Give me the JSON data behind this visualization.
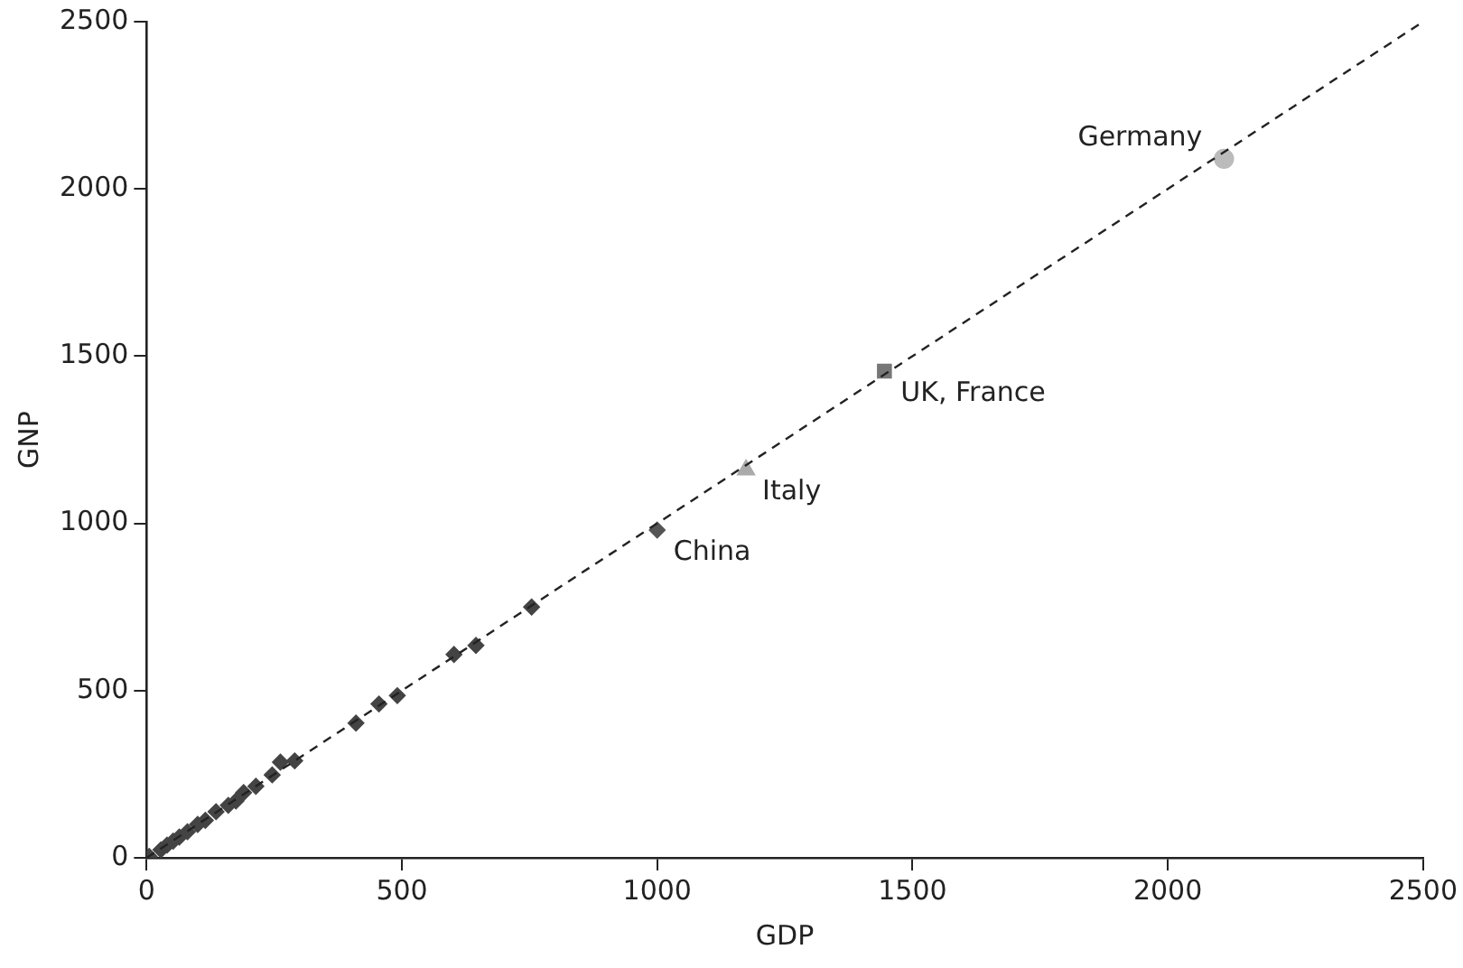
{
  "chart_data": {
    "type": "scatter",
    "xlabel": "GDP",
    "ylabel": "GNP",
    "xlim": [
      0,
      2500
    ],
    "ylim": [
      0,
      2500
    ],
    "xticks": [
      0,
      500,
      1000,
      1500,
      2000,
      2500
    ],
    "yticks": [
      0,
      500,
      1000,
      1500,
      2000,
      2500
    ],
    "grid": false,
    "legend": false,
    "series": [
      {
        "type": "line",
        "x": [
          0,
          2500
        ],
        "values": [
          0,
          2500
        ],
        "color": "#222222",
        "line_style": "dashed",
        "marker": "none"
      },
      {
        "color": "#444444",
        "marker": "diamond",
        "x": [
          5,
          28,
          40,
          52,
          64,
          80,
          100,
          115,
          136,
          160,
          175,
          190,
          214,
          246,
          262,
          290,
          410,
          455,
          491,
          602,
          645,
          754
        ],
        "values": [
          4,
          24,
          38,
          50,
          62,
          78,
          100,
          112,
          138,
          157,
          170,
          195,
          214,
          248,
          286,
          290,
          403,
          460,
          485,
          608,
          635,
          750
        ]
      },
      {
        "color": "#555555",
        "marker": "diamond",
        "x": [
          1000
        ],
        "values": [
          980
        ]
      },
      {
        "color": "#aaaaaa",
        "marker": "triangle",
        "x": [
          1174
        ],
        "values": [
          1160
        ]
      },
      {
        "color": "#777777",
        "marker": "square",
        "x": [
          1445
        ],
        "values": [
          1455
        ]
      },
      {
        "color": "#bbbbbb",
        "marker": "circle",
        "x": [
          2110
        ],
        "values": [
          2090
        ]
      }
    ],
    "annotations": [
      {
        "text": "China",
        "x": 1000,
        "y": 980
      },
      {
        "text": "Italy",
        "x": 1174,
        "y": 1160
      },
      {
        "text": "UK, France",
        "x": 1445,
        "y": 1455
      },
      {
        "text": "Germany",
        "x": 2110,
        "y": 2090
      }
    ]
  }
}
